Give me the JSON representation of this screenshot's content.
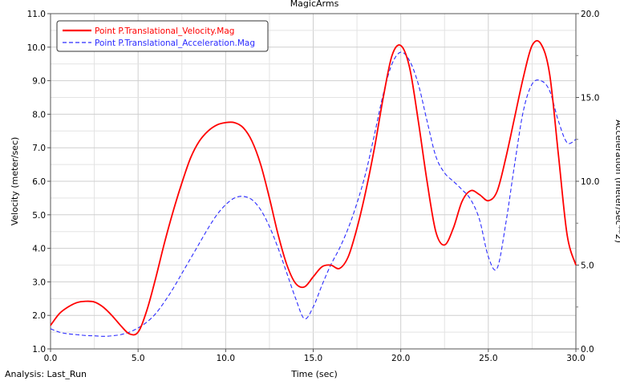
{
  "chart_data": {
    "type": "line",
    "title": "MagicArms",
    "xlabel": "Time (sec)",
    "ylabel_left": "Velocity (meter/sec)",
    "ylabel_right": "Acceleration (meter/sec**2)",
    "xlim": [
      0,
      30
    ],
    "ylim_left": [
      1.0,
      11.0
    ],
    "ylim_right": [
      0.0,
      20.0
    ],
    "x_ticks": [
      "0.0",
      "5.0",
      "10.0",
      "15.0",
      "20.0",
      "25.0",
      "30.0"
    ],
    "y_left_ticks": [
      "1.0",
      "2.0",
      "3.0",
      "4.0",
      "5.0",
      "6.0",
      "7.0",
      "8.0",
      "9.0",
      "10.0",
      "11.0"
    ],
    "y_right_ticks": [
      "0.0",
      "5.0",
      "10.0",
      "15.0",
      "20.0"
    ],
    "grid": true,
    "legend_position": "top-left",
    "footer": "Analysis:  Last_Run",
    "series": [
      {
        "name": "Point P.Translational_Velocity.Mag",
        "axis": "left",
        "color": "#ff0000",
        "style": "solid",
        "x": [
          0,
          0.5,
          1,
          1.5,
          2,
          2.5,
          3,
          3.5,
          4,
          4.5,
          5,
          5.5,
          6,
          6.5,
          7,
          7.5,
          8,
          8.5,
          9,
          9.5,
          10,
          10.5,
          11,
          11.5,
          12,
          12.5,
          13,
          13.5,
          14,
          14.5,
          15,
          15.5,
          16,
          16.5,
          17,
          17.5,
          18,
          18.5,
          19,
          19.5,
          20,
          20.5,
          21,
          21.5,
          22,
          22.5,
          23,
          23.5,
          24,
          24.5,
          25,
          25.5,
          26,
          26.5,
          27,
          27.5,
          28,
          28.5,
          29,
          29.5,
          30
        ],
        "values": [
          1.7,
          2.05,
          2.25,
          2.38,
          2.42,
          2.4,
          2.25,
          2.0,
          1.7,
          1.45,
          1.5,
          2.15,
          3.1,
          4.15,
          5.1,
          5.95,
          6.7,
          7.2,
          7.5,
          7.68,
          7.75,
          7.75,
          7.6,
          7.2,
          6.5,
          5.5,
          4.4,
          3.5,
          2.95,
          2.85,
          3.15,
          3.45,
          3.5,
          3.4,
          3.75,
          4.6,
          5.7,
          7.0,
          8.5,
          9.75,
          10.05,
          9.4,
          7.8,
          6.0,
          4.5,
          4.1,
          4.6,
          5.4,
          5.72,
          5.6,
          5.42,
          5.7,
          6.7,
          7.9,
          9.1,
          10.05,
          10.1,
          9.2,
          6.8,
          4.4,
          3.5
        ]
      },
      {
        "name": "Point P.Translational_Acceleration.Mag",
        "axis": "right",
        "color": "#2b2bff",
        "style": "dashed",
        "x": [
          0,
          0.5,
          1,
          1.5,
          2,
          2.5,
          3,
          3.5,
          4,
          4.5,
          5,
          5.5,
          6,
          6.5,
          7,
          7.5,
          8,
          8.5,
          9,
          9.5,
          10,
          10.5,
          11,
          11.5,
          12,
          12.5,
          13,
          13.5,
          14,
          14.5,
          15,
          15.5,
          16,
          16.5,
          17,
          17.5,
          18,
          18.5,
          19,
          19.5,
          20,
          20.5,
          21,
          21.5,
          22,
          22.5,
          23,
          23.5,
          24,
          24.5,
          25,
          25.5,
          26,
          26.5,
          27,
          27.5,
          28,
          28.5,
          29,
          29.5,
          30
        ],
        "values": [
          1.2,
          1.0,
          0.9,
          0.85,
          0.8,
          0.78,
          0.75,
          0.78,
          0.85,
          1.0,
          1.25,
          1.6,
          2.1,
          2.8,
          3.6,
          4.5,
          5.4,
          6.3,
          7.2,
          8.0,
          8.6,
          9.0,
          9.1,
          8.9,
          8.3,
          7.3,
          6.0,
          4.5,
          3.0,
          1.8,
          2.5,
          3.8,
          5.0,
          6.0,
          7.2,
          8.7,
          10.5,
          12.8,
          15.2,
          17.0,
          17.7,
          17.2,
          15.8,
          13.6,
          11.5,
          10.5,
          10.0,
          9.5,
          8.9,
          7.7,
          5.5,
          4.8,
          7.5,
          11.0,
          14.2,
          15.8,
          16.0,
          15.4,
          13.6,
          12.3,
          12.5
        ]
      }
    ]
  }
}
